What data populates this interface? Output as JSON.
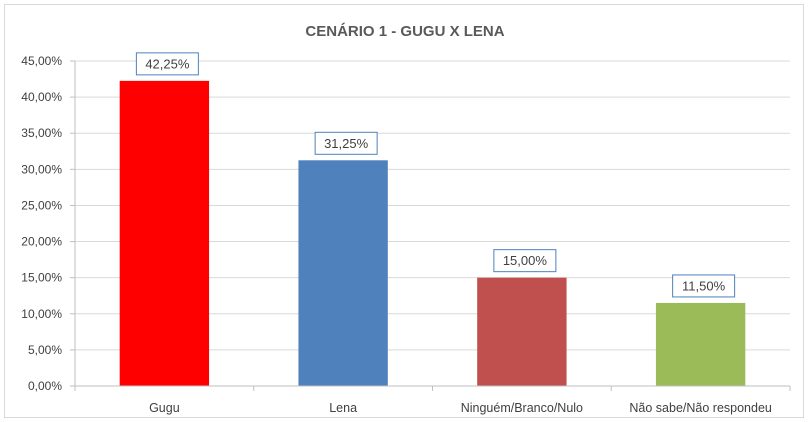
{
  "chart_data": {
    "type": "bar",
    "title": "CENÁRIO 1 - GUGU X LENA",
    "xlabel": "",
    "ylabel": "",
    "categories": [
      "Gugu",
      "Lena",
      "Ninguém/Branco/Nulo",
      "Não sabe/Não respondeu"
    ],
    "values": [
      42.25,
      31.25,
      15.0,
      11.5
    ],
    "value_labels": [
      "42,25%",
      "31,25%",
      "15,00%",
      "11,50%"
    ],
    "colors": [
      "#ff0000",
      "#4f81bd",
      "#c0504d",
      "#9bbb59"
    ],
    "ylim": [
      0,
      45
    ],
    "yticks": [
      0,
      5,
      10,
      15,
      20,
      25,
      30,
      35,
      40,
      45
    ],
    "ytick_labels": [
      "0,00%",
      "5,00%",
      "10,00%",
      "15,00%",
      "20,00%",
      "25,00%",
      "30,00%",
      "35,00%",
      "40,00%",
      "45,00%"
    ],
    "grid": true,
    "label_border_color": "#4f81bd"
  }
}
